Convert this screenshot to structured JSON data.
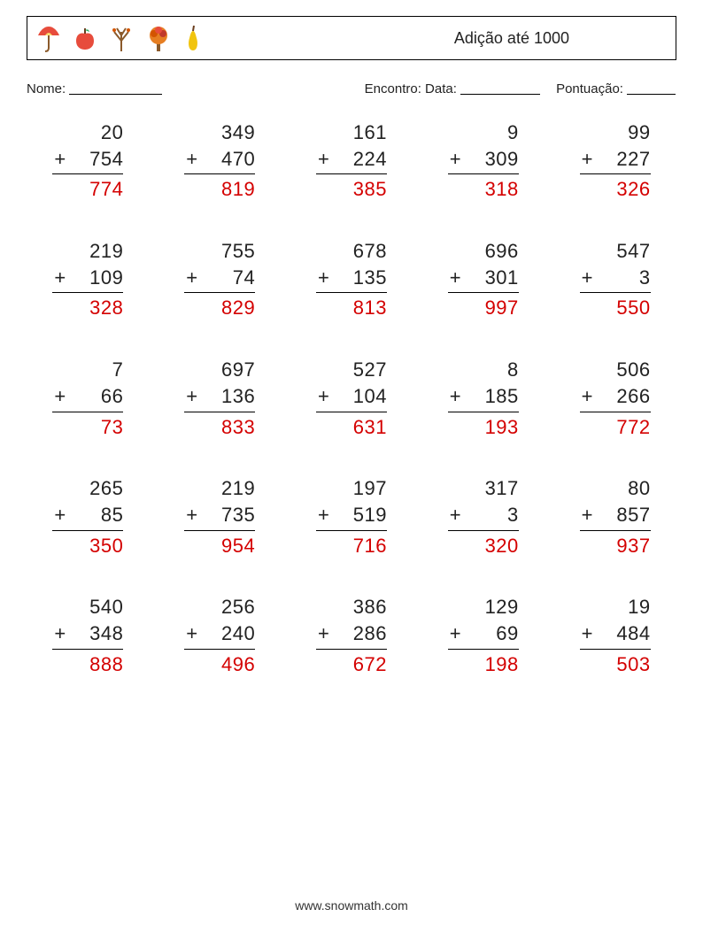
{
  "header": {
    "title": "Adição até 1000",
    "icons": [
      "umbrella",
      "apple",
      "bare-tree",
      "autumn-tree",
      "pear"
    ]
  },
  "meta": {
    "name_label": "Nome:",
    "date_label": "Encontro: Data:",
    "score_label": "Pontuação:"
  },
  "style": {
    "answer_color": "#d40000",
    "text_color": "#222222",
    "border_color": "#000000",
    "background": "#ffffff",
    "problem_font_size": 22,
    "columns": 5,
    "rows": 5,
    "operator": "+"
  },
  "problems": [
    {
      "a": 20,
      "b": 754,
      "ans": 774
    },
    {
      "a": 349,
      "b": 470,
      "ans": 819
    },
    {
      "a": 161,
      "b": 224,
      "ans": 385
    },
    {
      "a": 9,
      "b": 309,
      "ans": 318
    },
    {
      "a": 99,
      "b": 227,
      "ans": 326
    },
    {
      "a": 219,
      "b": 109,
      "ans": 328
    },
    {
      "a": 755,
      "b": 74,
      "ans": 829
    },
    {
      "a": 678,
      "b": 135,
      "ans": 813
    },
    {
      "a": 696,
      "b": 301,
      "ans": 997
    },
    {
      "a": 547,
      "b": 3,
      "ans": 550
    },
    {
      "a": 7,
      "b": 66,
      "ans": 73
    },
    {
      "a": 697,
      "b": 136,
      "ans": 833
    },
    {
      "a": 527,
      "b": 104,
      "ans": 631
    },
    {
      "a": 8,
      "b": 185,
      "ans": 193
    },
    {
      "a": 506,
      "b": 266,
      "ans": 772
    },
    {
      "a": 265,
      "b": 85,
      "ans": 350
    },
    {
      "a": 219,
      "b": 735,
      "ans": 954
    },
    {
      "a": 197,
      "b": 519,
      "ans": 716
    },
    {
      "a": 317,
      "b": 3,
      "ans": 320
    },
    {
      "a": 80,
      "b": 857,
      "ans": 937
    },
    {
      "a": 540,
      "b": 348,
      "ans": 888
    },
    {
      "a": 256,
      "b": 240,
      "ans": 496
    },
    {
      "a": 386,
      "b": 286,
      "ans": 672
    },
    {
      "a": 129,
      "b": 69,
      "ans": 198
    },
    {
      "a": 19,
      "b": 484,
      "ans": 503
    }
  ],
  "footer": "www.snowmath.com"
}
